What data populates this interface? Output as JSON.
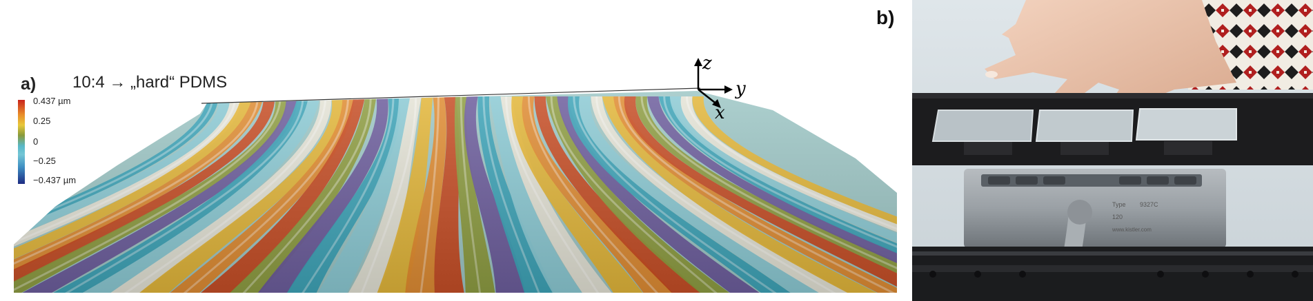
{
  "panel_a": {
    "label": "a)",
    "title": "10:4 → „hard“ PDMS",
    "colorbar": {
      "labels": [
        "0.437 µm",
        "0.25",
        "0",
        "−0.25",
        "−0.437 µm"
      ],
      "colors": [
        "#c8231c",
        "#e98f2a",
        "#e8c83b",
        "#8a9a3a",
        "#58b8c8",
        "#74c6d6",
        "#3f8fc2",
        "#1d2b82"
      ]
    },
    "axes": {
      "z": "z",
      "y": "y",
      "x": "x"
    }
  },
  "panel_b": {
    "label": "b)",
    "sensor_text": [
      "9327C",
      "Type",
      "120",
      "www.kistler.com"
    ]
  }
}
